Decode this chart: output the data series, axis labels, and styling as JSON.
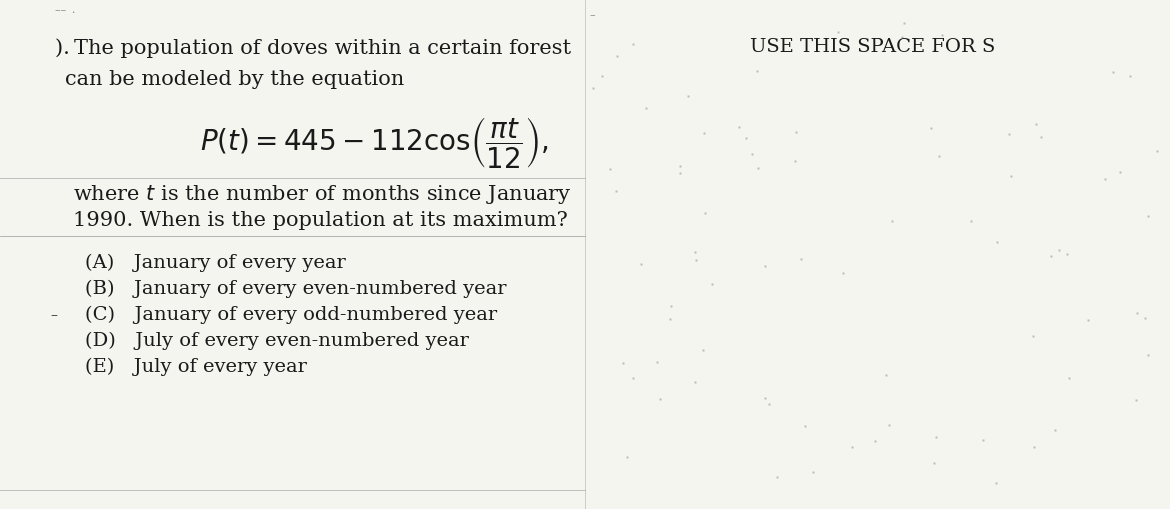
{
  "background_color": "#f5f5f0",
  "header_text": "USE THIS SPACE FOR S",
  "line1": "). The population of doves within a certain forest",
  "line2": " can be modeled by the equation",
  "equation": "P(t) = 445 – 112cos\\left(\\frac{\\pi t}{12}\\right),",
  "line3": "where $t$ is the number of months since January",
  "line4": "1990. When is the population at its maximum?",
  "choices": [
    "(A) January of every year",
    "(B) January of every even-numbered year",
    "(C) January of every odd-numbered year",
    "(D) July of every even-numbered year",
    "(E) July of every year"
  ],
  "main_font_size": 15,
  "choice_font_size": 14,
  "header_font_size": 14,
  "equation_font_size": 17,
  "text_color": "#1a1a1a",
  "header_color": "#1a1a1a"
}
